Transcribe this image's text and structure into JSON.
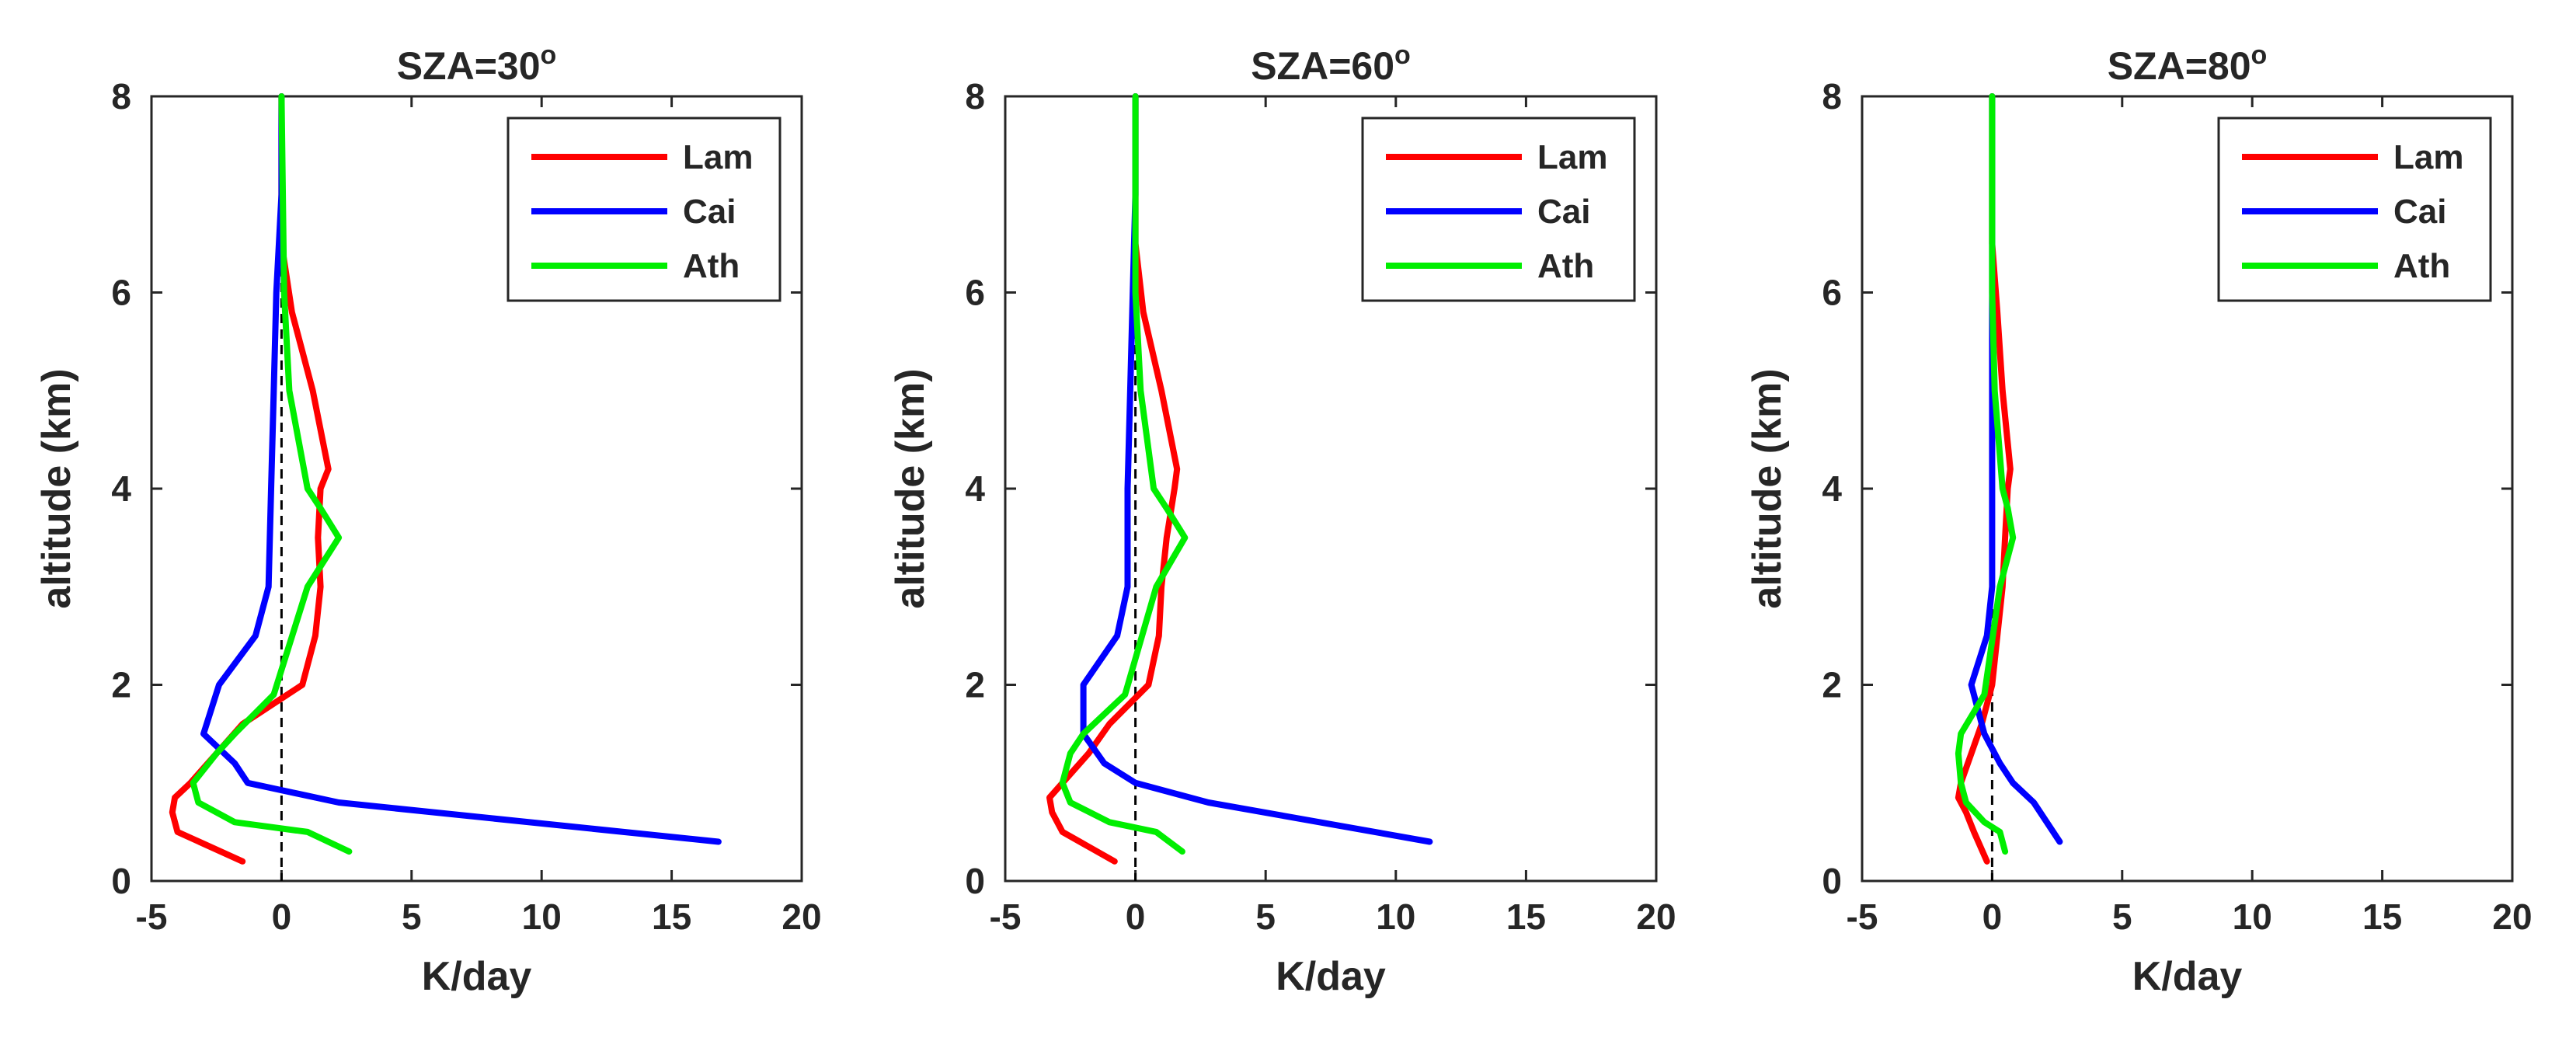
{
  "chart_data": [
    {
      "type": "line",
      "title": "SZA=30",
      "title_superscript": "o",
      "xlabel": "K/day",
      "ylabel": "altitude (km)",
      "xlim": [
        -5,
        20
      ],
      "ylim": [
        0,
        8
      ],
      "xticks": [
        -5,
        0,
        5,
        10,
        15,
        20
      ],
      "yticks": [
        0,
        2,
        4,
        6,
        8
      ],
      "reference_line_x": 0,
      "legend_position": "top-right",
      "series": [
        {
          "name": "Lam",
          "color": "#ff0000",
          "x": [
            -1.5,
            -4.0,
            -4.2,
            -4.1,
            -3.5,
            -2.5,
            -1.5,
            0.8,
            1.3,
            1.5,
            1.4,
            1.5,
            1.8,
            1.2,
            0.4,
            0.0,
            0.0
          ],
          "y": [
            0.2,
            0.5,
            0.7,
            0.85,
            1.0,
            1.3,
            1.6,
            2.0,
            2.5,
            3.0,
            3.5,
            4.0,
            4.2,
            5.0,
            5.8,
            6.5,
            8.0
          ]
        },
        {
          "name": "Cai",
          "color": "#0000ff",
          "x": [
            16.8,
            2.2,
            -1.3,
            -1.8,
            -3.0,
            -2.4,
            -1.0,
            -0.5,
            -0.4,
            -0.3,
            -0.2,
            0.0,
            0.0
          ],
          "y": [
            0.4,
            0.8,
            1.0,
            1.2,
            1.5,
            2.0,
            2.5,
            3.0,
            4.0,
            5.0,
            6.0,
            7.0,
            8.0
          ]
        },
        {
          "name": "Ath",
          "color": "#00ee00",
          "x": [
            2.6,
            1.0,
            -1.8,
            -3.2,
            -3.4,
            -2.5,
            -1.8,
            -0.3,
            1.0,
            2.2,
            1.5,
            1.0,
            0.3,
            0.1,
            0.0
          ],
          "y": [
            0.3,
            0.5,
            0.6,
            0.8,
            1.0,
            1.3,
            1.5,
            1.9,
            3.0,
            3.5,
            3.8,
            4.0,
            5.0,
            6.0,
            8.0
          ]
        }
      ]
    },
    {
      "type": "line",
      "title": "SZA=60",
      "title_superscript": "o",
      "xlabel": "K/day",
      "ylabel": "altitude (km)",
      "xlim": [
        -5,
        20
      ],
      "ylim": [
        0,
        8
      ],
      "xticks": [
        -5,
        0,
        5,
        10,
        15,
        20
      ],
      "yticks": [
        0,
        2,
        4,
        6,
        8
      ],
      "reference_line_x": 0,
      "legend_position": "top-right",
      "series": [
        {
          "name": "Lam",
          "color": "#ff0000",
          "x": [
            -0.8,
            -2.8,
            -3.2,
            -3.3,
            -2.8,
            -1.8,
            -1.0,
            0.5,
            0.9,
            1.0,
            1.2,
            1.5,
            1.6,
            1.0,
            0.3,
            0.0,
            0.0
          ],
          "y": [
            0.2,
            0.5,
            0.7,
            0.85,
            1.0,
            1.3,
            1.6,
            2.0,
            2.5,
            3.0,
            3.5,
            4.0,
            4.2,
            5.0,
            5.8,
            6.5,
            8.0
          ]
        },
        {
          "name": "Cai",
          "color": "#0000ff",
          "x": [
            11.3,
            2.8,
            0.0,
            -1.2,
            -2.0,
            -2.0,
            -0.7,
            -0.3,
            -0.3,
            -0.2,
            -0.1,
            0.0,
            0.0
          ],
          "y": [
            0.4,
            0.8,
            1.0,
            1.2,
            1.5,
            2.0,
            2.5,
            3.0,
            4.0,
            5.0,
            6.0,
            7.0,
            8.0
          ]
        },
        {
          "name": "Ath",
          "color": "#00ee00",
          "x": [
            1.8,
            0.8,
            -1.0,
            -2.5,
            -2.8,
            -2.5,
            -2.0,
            -0.4,
            0.8,
            1.9,
            1.2,
            0.7,
            0.2,
            0.0,
            0.0
          ],
          "y": [
            0.3,
            0.5,
            0.6,
            0.8,
            1.0,
            1.3,
            1.5,
            1.9,
            3.0,
            3.5,
            3.8,
            4.0,
            5.0,
            6.0,
            8.0
          ]
        }
      ]
    },
    {
      "type": "line",
      "title": "SZA=80",
      "title_superscript": "o",
      "xlabel": "K/day",
      "ylabel": "altitude (km)",
      "xlim": [
        -5,
        20
      ],
      "ylim": [
        0,
        8
      ],
      "xticks": [
        -5,
        0,
        5,
        10,
        15,
        20
      ],
      "yticks": [
        0,
        2,
        4,
        6,
        8
      ],
      "reference_line_x": 0,
      "legend_position": "top-right",
      "series": [
        {
          "name": "Lam",
          "color": "#ff0000",
          "x": [
            -0.2,
            -0.7,
            -1.0,
            -1.3,
            -1.2,
            -0.8,
            -0.4,
            0.0,
            0.2,
            0.4,
            0.5,
            0.6,
            0.7,
            0.4,
            0.2,
            0.0,
            0.0
          ],
          "y": [
            0.2,
            0.5,
            0.7,
            0.85,
            1.0,
            1.3,
            1.6,
            2.0,
            2.5,
            3.0,
            3.5,
            4.0,
            4.2,
            5.0,
            5.8,
            6.5,
            8.0
          ]
        },
        {
          "name": "Cai",
          "color": "#0000ff",
          "x": [
            2.6,
            1.6,
            0.8,
            0.3,
            -0.3,
            -0.8,
            -0.2,
            0.0,
            0.0,
            0.0,
            0.0,
            0.0,
            0.0
          ],
          "y": [
            0.4,
            0.8,
            1.0,
            1.2,
            1.5,
            2.0,
            2.5,
            3.0,
            4.0,
            5.0,
            6.0,
            7.0,
            8.0
          ]
        },
        {
          "name": "Ath",
          "color": "#00ee00",
          "x": [
            0.5,
            0.3,
            -0.3,
            -1.0,
            -1.2,
            -1.3,
            -1.2,
            -0.3,
            0.3,
            0.8,
            0.6,
            0.4,
            0.1,
            0.0,
            0.0
          ],
          "y": [
            0.3,
            0.5,
            0.6,
            0.8,
            1.0,
            1.3,
            1.5,
            1.9,
            3.0,
            3.5,
            3.8,
            4.0,
            5.0,
            6.0,
            8.0
          ]
        }
      ]
    }
  ]
}
